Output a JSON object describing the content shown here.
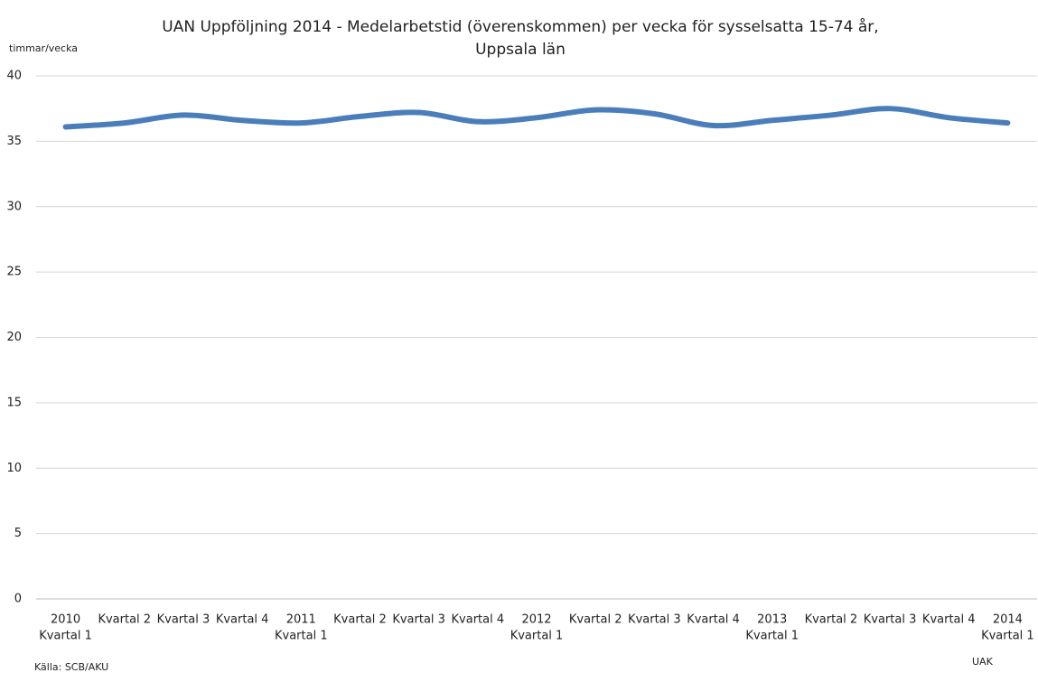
{
  "chart_data": {
    "type": "line",
    "title": [
      "UAN Uppföljning 2014 - Medelarbetstid (överenskommen)  per vecka för sysselsatta 15-74 år,",
      "Uppsala län"
    ],
    "y_label": "timmar/vecka",
    "source": "Källa: SCB/AKU",
    "credit": "UAK",
    "categories": [
      [
        "2010",
        "Kvartal 1"
      ],
      [
        "Kvartal 2"
      ],
      [
        "Kvartal 3"
      ],
      [
        "Kvartal 4"
      ],
      [
        "2011",
        "Kvartal 1"
      ],
      [
        "Kvartal 2"
      ],
      [
        "Kvartal 3"
      ],
      [
        "Kvartal 4"
      ],
      [
        "2012",
        "Kvartal 1"
      ],
      [
        "Kvartal 2"
      ],
      [
        "Kvartal 3"
      ],
      [
        "Kvartal 4"
      ],
      [
        "2013",
        "Kvartal 1"
      ],
      [
        "Kvartal 2"
      ],
      [
        "Kvartal 3"
      ],
      [
        "Kvartal 4"
      ],
      [
        "2014",
        "Kvartal 1"
      ]
    ],
    "series": [
      {
        "color": "#4a7ebb",
        "values": [
          36.1,
          36.4,
          37.0,
          36.6,
          36.4,
          36.9,
          37.2,
          36.5,
          36.8,
          37.4,
          37.1,
          36.2,
          36.6,
          37.0,
          37.5,
          36.8,
          36.4
        ]
      }
    ],
    "ylim": [
      0,
      40
    ],
    "yticks": [
      0,
      5,
      10,
      15,
      20,
      25,
      30,
      35,
      40
    ],
    "grid": true,
    "smooth": true
  }
}
